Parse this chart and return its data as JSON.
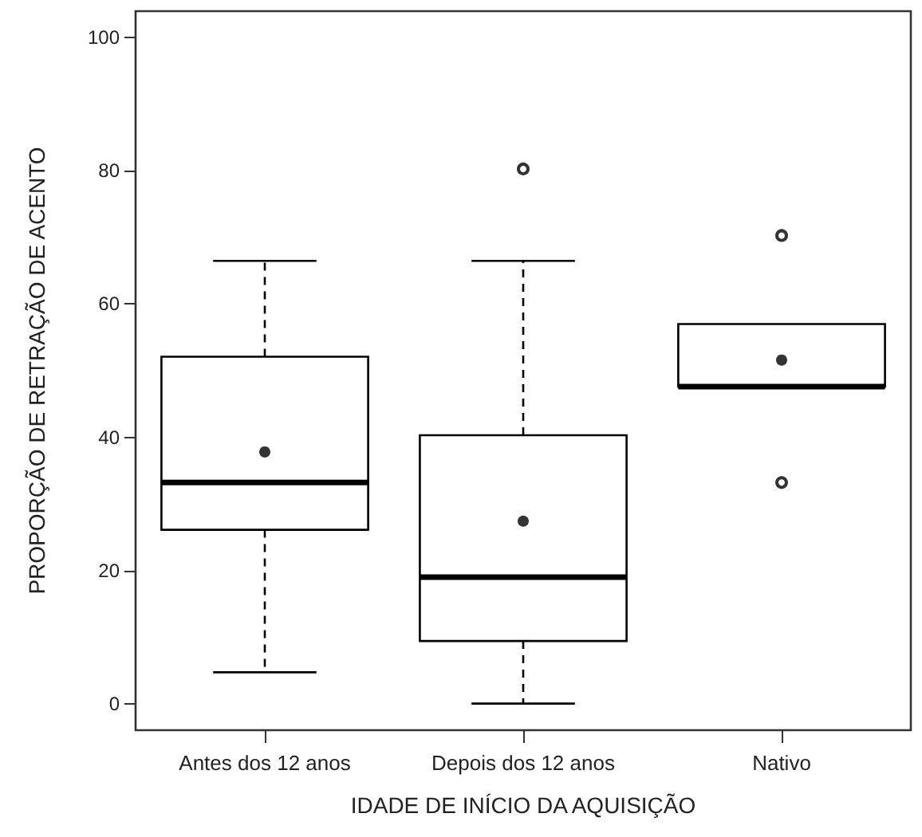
{
  "chart_data": {
    "type": "box",
    "categories": [
      "Antes dos 12 anos",
      "Depois dos 12 anos",
      "Nativo"
    ],
    "xlabel": "IDADE DE INÍCIO DA AQUISIÇÃO",
    "ylabel": "PROPORÇÃO DE RETRAÇÃO DE ACENTO",
    "boxes": [
      {
        "low": 4.7,
        "q1": 26.1,
        "median": 33.2,
        "q3": 52.1,
        "high": 66.5,
        "mean": 37.8
      },
      {
        "low": 0,
        "q1": 9.4,
        "median": 19.0,
        "q3": 40.3,
        "high": 66.5,
        "mean": 27.4,
        "outliers": [
          80.3
        ]
      },
      {
        "low": 47.6,
        "q1": 47.6,
        "median": 47.6,
        "q3": 57.0,
        "high": 57.0,
        "mean": 51.6,
        "outliers": [
          70.3,
          33.2
        ]
      }
    ],
    "color": "#000000",
    "ylim": [
      -4,
      104
    ],
    "yticks": [
      0,
      20,
      40,
      60,
      80,
      100
    ],
    "grid": false
  }
}
